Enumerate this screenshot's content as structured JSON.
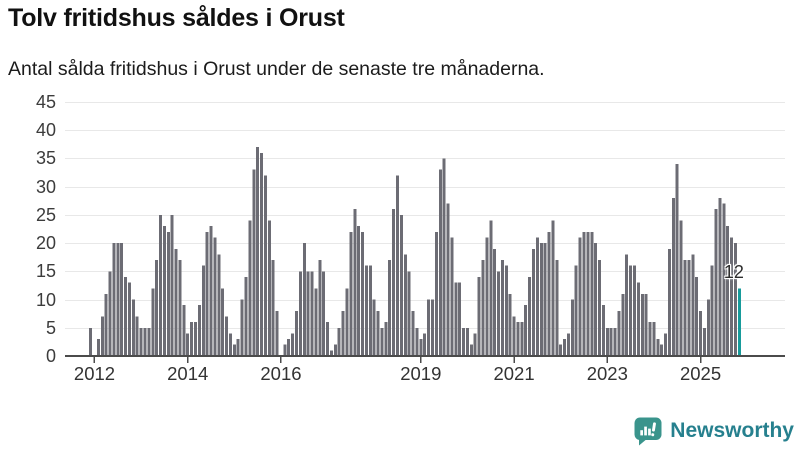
{
  "header": {
    "title": "Tolv fritidshus såldes i Orust",
    "subtitle": "Antal sålda fritidshus i Orust under de senaste tre månaderna."
  },
  "chart_data": {
    "type": "bar",
    "title": "Tolv fritidshus såldes i Orust",
    "subtitle": "Antal sålda fritidshus i Orust under de senaste tre månaderna.",
    "ylim": [
      0,
      45
    ],
    "yticks": [
      0,
      5,
      10,
      15,
      20,
      25,
      30,
      35,
      40,
      45
    ],
    "grid": "horizontal",
    "bar_color": "#6c6c74",
    "axis_color": "#4b4b4b",
    "grid_color": "#e8e8e8",
    "x_unit": "month",
    "year_ticks": [
      {
        "label": "2012",
        "index": 1
      },
      {
        "label": "2014",
        "index": 25
      },
      {
        "label": "2016",
        "index": 49
      },
      {
        "label": "2019",
        "index": 85
      },
      {
        "label": "2021",
        "index": 109
      },
      {
        "label": "2023",
        "index": 133
      },
      {
        "label": "2025",
        "index": 157
      }
    ],
    "values": [
      5,
      0,
      3,
      7,
      11,
      15,
      20,
      20,
      20,
      14,
      13,
      10,
      7,
      5,
      5,
      5,
      12,
      17,
      25,
      23,
      22,
      25,
      19,
      17,
      9,
      4,
      6,
      6,
      9,
      16,
      22,
      23,
      21,
      18,
      12,
      7,
      4,
      2,
      3,
      10,
      14,
      24,
      33,
      37,
      36,
      32,
      24,
      17,
      8,
      0,
      2,
      3,
      4,
      8,
      15,
      20,
      15,
      15,
      12,
      17,
      15,
      6,
      1,
      2,
      5,
      8,
      12,
      22,
      26,
      23,
      22,
      16,
      16,
      10,
      8,
      5,
      6,
      17,
      26,
      32,
      25,
      18,
      15,
      8,
      5,
      3,
      4,
      10,
      10,
      22,
      33,
      35,
      27,
      21,
      13,
      13,
      5,
      5,
      2,
      4,
      14,
      17,
      21,
      24,
      19,
      15,
      17,
      16,
      11,
      7,
      6,
      6,
      9,
      14,
      19,
      21,
      20,
      20,
      22,
      24,
      17,
      2,
      3,
      4,
      10,
      16,
      21,
      22,
      22,
      22,
      20,
      17,
      9,
      5,
      5,
      5,
      8,
      11,
      18,
      16,
      16,
      13,
      11,
      11,
      6,
      6,
      3,
      2,
      4,
      19,
      28,
      34,
      24,
      17,
      17,
      18,
      14,
      8,
      5,
      10,
      16,
      26,
      28,
      27,
      23,
      21,
      20,
      12
    ],
    "highlight": {
      "index": 167,
      "value": 12,
      "label": "12",
      "color": "#179b9b"
    }
  },
  "branding": {
    "logo_text": "Newsworthy",
    "icon_color": "#3a948c",
    "text_color": "#26808e"
  }
}
